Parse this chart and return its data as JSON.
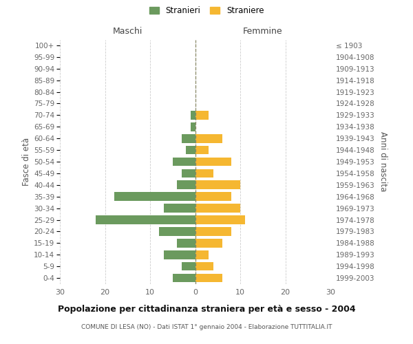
{
  "age_groups": [
    "0-4",
    "5-9",
    "10-14",
    "15-19",
    "20-24",
    "25-29",
    "30-34",
    "35-39",
    "40-44",
    "45-49",
    "50-54",
    "55-59",
    "60-64",
    "65-69",
    "70-74",
    "75-79",
    "80-84",
    "85-89",
    "90-94",
    "95-99",
    "100+"
  ],
  "birth_years": [
    "1999-2003",
    "1994-1998",
    "1989-1993",
    "1984-1988",
    "1979-1983",
    "1974-1978",
    "1969-1973",
    "1964-1968",
    "1959-1963",
    "1954-1958",
    "1949-1953",
    "1944-1948",
    "1939-1943",
    "1934-1938",
    "1929-1933",
    "1924-1928",
    "1919-1923",
    "1914-1918",
    "1909-1913",
    "1904-1908",
    "≤ 1903"
  ],
  "maschi": [
    5,
    3,
    7,
    4,
    8,
    22,
    7,
    18,
    4,
    3,
    5,
    2,
    3,
    1,
    1,
    0,
    0,
    0,
    0,
    0,
    0
  ],
  "femmine": [
    6,
    4,
    3,
    6,
    8,
    11,
    10,
    8,
    10,
    4,
    8,
    3,
    6,
    0,
    3,
    0,
    0,
    0,
    0,
    0,
    0
  ],
  "maschi_color": "#6b9a5e",
  "femmine_color": "#f5b731",
  "background_color": "#ffffff",
  "grid_color": "#cccccc",
  "title": "Popolazione per cittadinanza straniera per età e sesso - 2004",
  "subtitle": "COMUNE DI LESA (NO) - Dati ISTAT 1° gennaio 2004 - Elaborazione TUTTITALIA.IT",
  "ylabel_left": "Fasce di età",
  "ylabel_right": "Anni di nascita",
  "label_maschi": "Maschi",
  "label_femmine": "Femmine",
  "legend_maschi": "Stranieri",
  "legend_femmine": "Straniere",
  "xlim": 30,
  "bar_height": 0.75
}
